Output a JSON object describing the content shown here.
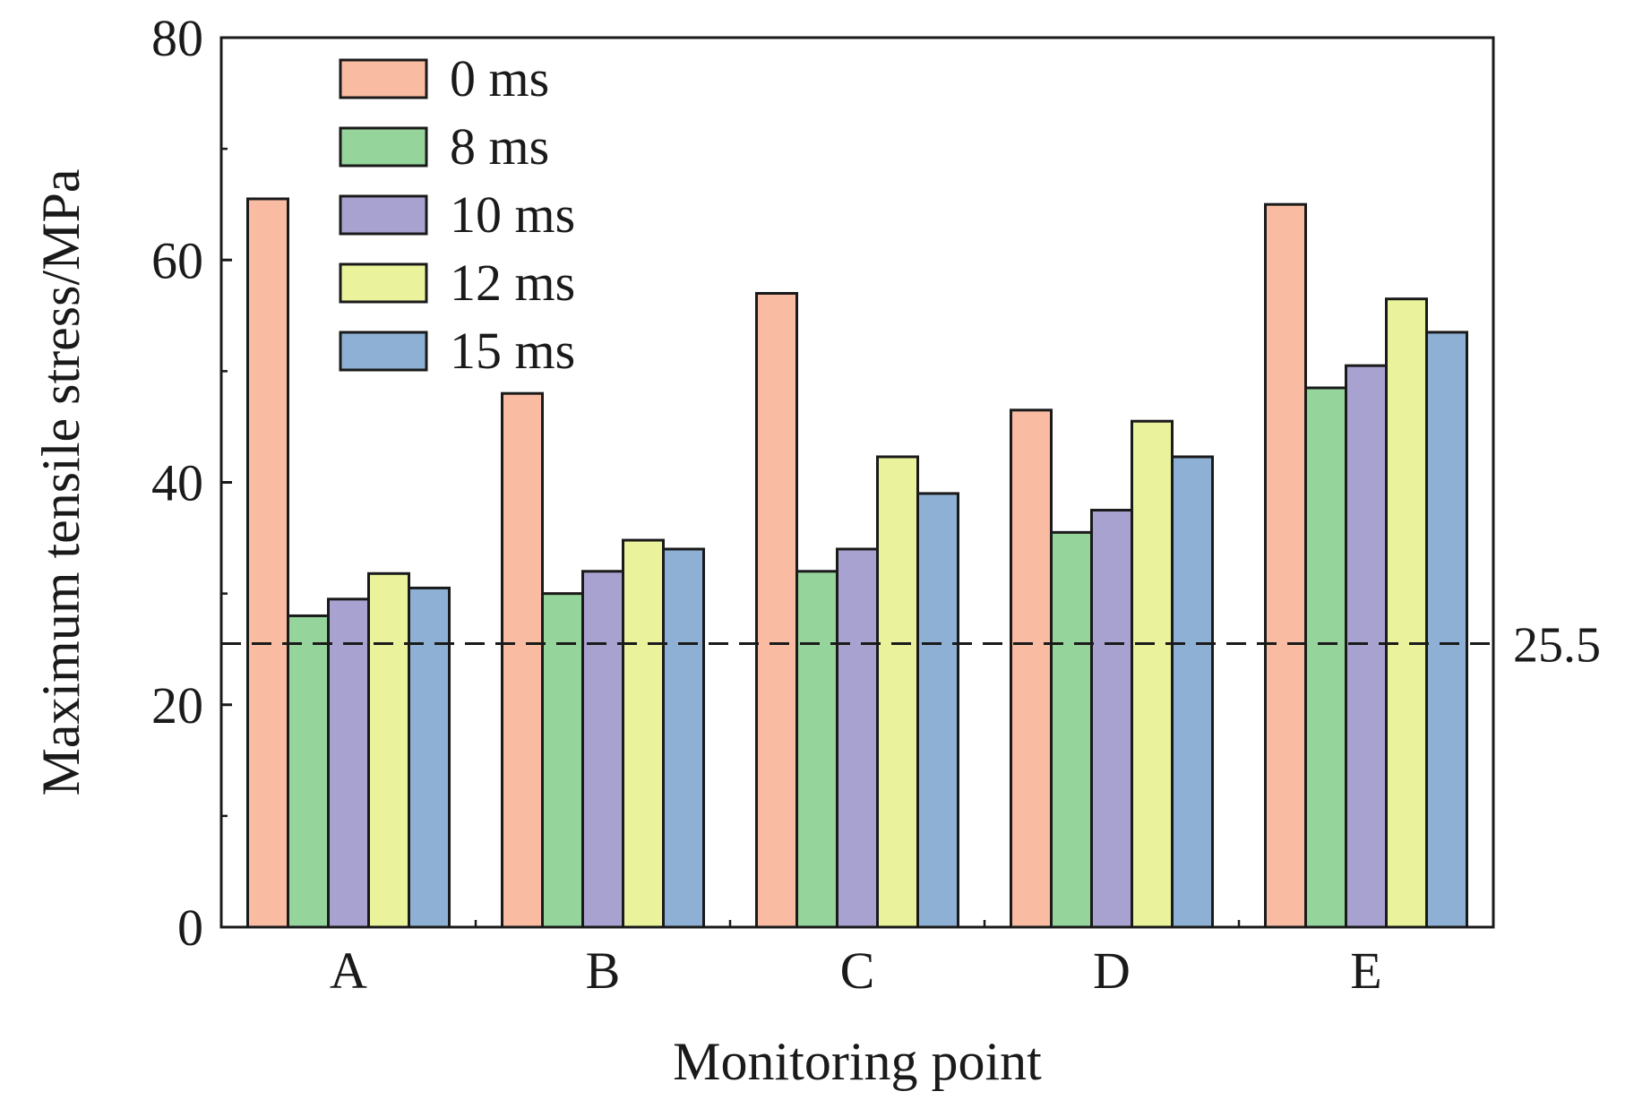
{
  "chart_data": {
    "type": "bar",
    "xlabel": "Monitoring point",
    "ylabel": "Maximum tensile stress/MPa",
    "categories": [
      "A",
      "B",
      "C",
      "D",
      "E"
    ],
    "ylim": [
      0,
      80
    ],
    "yticks": [
      0,
      20,
      40,
      60,
      80
    ],
    "series": [
      {
        "name": "0 ms",
        "color": "#f9bca3",
        "values": [
          65.5,
          48,
          57,
          46.5,
          65
        ]
      },
      {
        "name": "8 ms",
        "color": "#95d49b",
        "values": [
          28,
          30,
          32,
          35.5,
          48.5
        ]
      },
      {
        "name": "10 ms",
        "color": "#a8a2d0",
        "values": [
          29.5,
          32,
          34,
          37.5,
          50.5
        ]
      },
      {
        "name": "12 ms",
        "color": "#eaf39b",
        "values": [
          31.8,
          34.8,
          42.3,
          45.5,
          56.5
        ]
      },
      {
        "name": "15 ms",
        "color": "#8eb0d4",
        "values": [
          30.5,
          34,
          39,
          42.3,
          53.5
        ]
      }
    ],
    "reference_line": {
      "value": 25.5,
      "label": "25.5",
      "style": "dashed"
    },
    "legend_position": "top-left",
    "grid": false
  }
}
